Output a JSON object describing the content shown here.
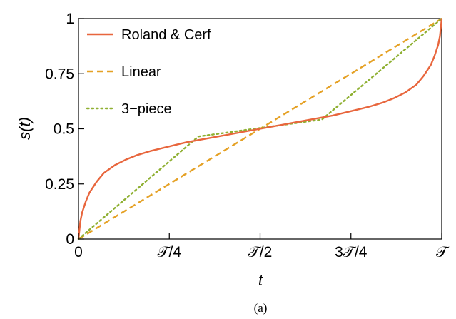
{
  "chart_data": {
    "type": "line",
    "xlabel": "t",
    "ylabel": "s(t)",
    "caption": "(a)",
    "xlim": [
      0,
      1
    ],
    "ylim": [
      0,
      1
    ],
    "x_ticks": [
      {
        "value": 0,
        "label": "0"
      },
      {
        "value": 0.25,
        "label": "𝒯/4"
      },
      {
        "value": 0.5,
        "label": "𝒯/2"
      },
      {
        "value": 0.75,
        "label": "3𝒯/4"
      },
      {
        "value": 1,
        "label": "𝒯"
      }
    ],
    "y_ticks": [
      {
        "value": 0,
        "label": "0"
      },
      {
        "value": 0.25,
        "label": "0.25"
      },
      {
        "value": 0.5,
        "label": "0.5"
      },
      {
        "value": 0.75,
        "label": "0.75"
      },
      {
        "value": 1,
        "label": "1"
      }
    ],
    "grid": false,
    "legend_position": "top-left",
    "series": [
      {
        "name": "Roland & Cerf",
        "color": "#E8663D",
        "style": "solid",
        "x": [
          0,
          0.005,
          0.01,
          0.02,
          0.03,
          0.05,
          0.07,
          0.1,
          0.13,
          0.16,
          0.2,
          0.25,
          0.3,
          0.35,
          0.4,
          0.45,
          0.5,
          0.55,
          0.6,
          0.65,
          0.7,
          0.75,
          0.8,
          0.84,
          0.87,
          0.9,
          0.93,
          0.95,
          0.97,
          0.98,
          0.99,
          0.995,
          1
        ],
        "values": [
          0,
          0.08,
          0.12,
          0.17,
          0.21,
          0.26,
          0.3,
          0.335,
          0.36,
          0.38,
          0.4,
          0.42,
          0.44,
          0.455,
          0.47,
          0.485,
          0.5,
          0.515,
          0.53,
          0.545,
          0.56,
          0.58,
          0.6,
          0.62,
          0.64,
          0.665,
          0.7,
          0.74,
          0.79,
          0.83,
          0.88,
          0.92,
          1
        ]
      },
      {
        "name": "Linear",
        "color": "#E5A125",
        "style": "dashed",
        "x": [
          0,
          1
        ],
        "values": [
          0,
          1
        ]
      },
      {
        "name": "3−piece",
        "color": "#8FB032",
        "style": "dotted",
        "x": [
          0,
          0.33,
          0.67,
          1
        ],
        "values": [
          0,
          0.465,
          0.542,
          1
        ]
      }
    ]
  }
}
